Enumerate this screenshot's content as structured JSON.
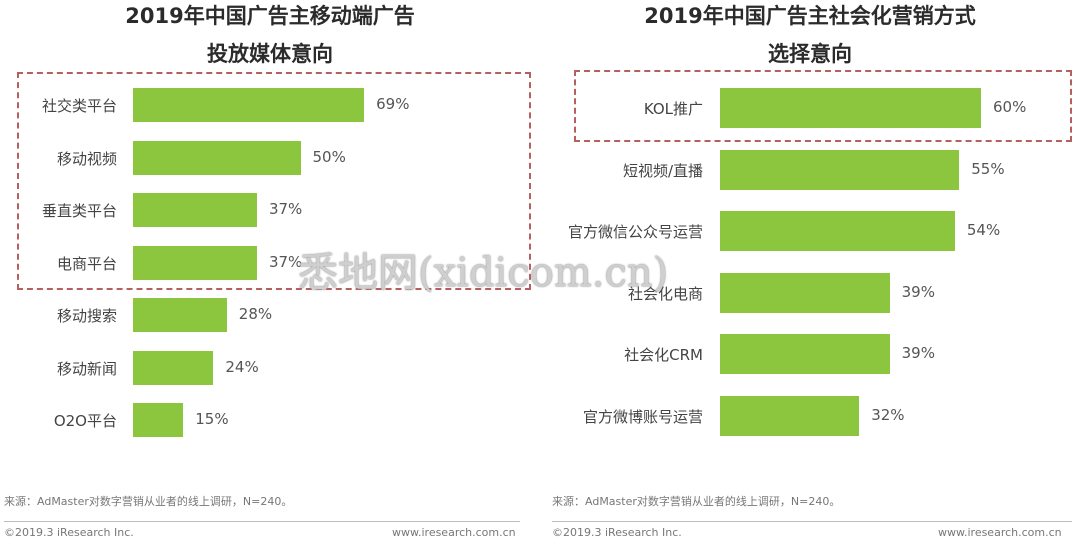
{
  "watermark": "悉地网(xidicom.cn)",
  "charts": {
    "left": {
      "title_line1": "2019年中国广告主移动端广告",
      "title_line2": "投放媒体意向",
      "source": "来源：AdMaster对数字营销从业者的线上调研，N=240。",
      "copyright": "©2019.3 iResearch Inc.",
      "website": "www.iresearch.com.cn"
    },
    "right": {
      "title_line1": "2019年中国广告主社会化营销方式",
      "title_line2": "选择意向",
      "source": "来源：AdMaster对数字营销从业者的线上调研，N=240。",
      "copyright": "©2019.3 iResearch Inc.",
      "website": "www.iresearch.com.cn"
    }
  },
  "colors": {
    "bar": "#8cc63e",
    "highlight_border": "#b55f5f"
  },
  "chart_data": [
    {
      "type": "bar",
      "orientation": "horizontal",
      "title": "2019年中国广告主移动端广告投放媒体意向",
      "categories": [
        "社交类平台",
        "移动视频",
        "垂直类平台",
        "电商平台",
        "移动搜索",
        "移动新闻",
        "O2O平台"
      ],
      "values": [
        69,
        50,
        37,
        37,
        28,
        24,
        15
      ],
      "value_labels": [
        "69%",
        "50%",
        "37%",
        "37%",
        "28%",
        "24%",
        "15%"
      ],
      "highlighted_categories": [
        "社交类平台",
        "移动视频",
        "垂直类平台",
        "电商平台"
      ],
      "xlim": [
        0,
        100
      ],
      "grid": false,
      "legend": "none"
    },
    {
      "type": "bar",
      "orientation": "horizontal",
      "title": "2019年中国广告主社会化营销方式选择意向",
      "categories": [
        "KOL推广",
        "短视频/直播",
        "官方微信公众号运营",
        "社会化电商",
        "社会化CRM",
        "官方微博账号运营"
      ],
      "values": [
        60,
        55,
        54,
        39,
        39,
        32
      ],
      "value_labels": [
        "60%",
        "55%",
        "54%",
        "39%",
        "39%",
        "32%"
      ],
      "highlighted_categories": [
        "KOL推广"
      ],
      "xlim": [
        0,
        100
      ],
      "grid": false,
      "legend": "none"
    }
  ]
}
